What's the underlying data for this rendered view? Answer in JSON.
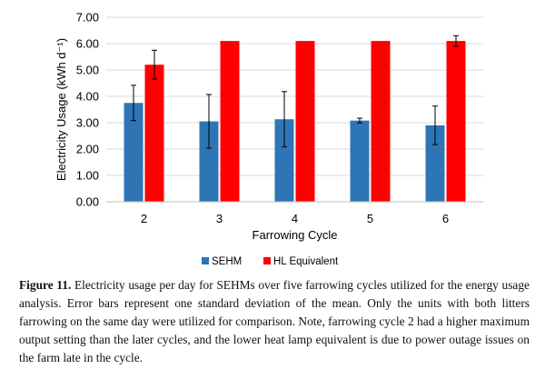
{
  "chart_data": {
    "type": "bar",
    "title": "",
    "xlabel": "Farrowing Cycle",
    "ylabel": "Electricity Usage (kWh d⁻¹)",
    "ylim": [
      0,
      7
    ],
    "yticks": [
      "0.00",
      "1.00",
      "2.00",
      "3.00",
      "4.00",
      "5.00",
      "6.00",
      "7.00"
    ],
    "grid": true,
    "legend_position": "bottom-center",
    "categories": [
      "2",
      "3",
      "4",
      "5",
      "6"
    ],
    "series": [
      {
        "name": "SEHM",
        "color": "#2e75b6",
        "values": [
          3.75,
          3.05,
          3.13,
          3.08,
          2.9
        ],
        "errors": [
          0.67,
          1.02,
          1.05,
          0.09,
          0.73
        ]
      },
      {
        "name": "HL Equivalent",
        "color": "#ff0000",
        "values": [
          5.2,
          6.1,
          6.1,
          6.1,
          6.1
        ],
        "errors": [
          0.55,
          0.0,
          0.0,
          0.0,
          0.2
        ]
      }
    ]
  },
  "caption": {
    "label": "Figure 11.",
    "text": "Electricity usage per day for SEHMs over five farrowing cycles utilized for the energy usage analysis. Error bars represent one standard deviation of the mean. Only the units with both litters farrowing on the same day were utilized for comparison. Note, farrowing cycle 2 had a higher maximum output setting than the later cycles, and the lower heat lamp equivalent is due to power outage issues on the farm late in the cycle."
  }
}
